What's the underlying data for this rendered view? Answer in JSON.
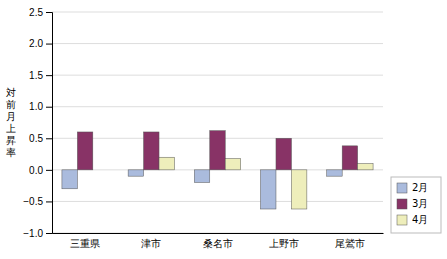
{
  "chart_data": {
    "type": "bar",
    "categories": [
      "三重県",
      "津市",
      "桑名市",
      "上野市",
      "尾鷲市"
    ],
    "series": [
      {
        "name": "2月",
        "color": "#aabbdd",
        "values": [
          -0.3,
          -0.1,
          -0.2,
          -0.62,
          -0.1
        ]
      },
      {
        "name": "3月",
        "color": "#883366",
        "values": [
          0.6,
          0.6,
          0.62,
          0.5,
          0.38
        ]
      },
      {
        "name": "4月",
        "color": "#eeeebb",
        "values": [
          0.0,
          0.2,
          0.18,
          -0.62,
          0.1
        ]
      }
    ],
    "y_label": "対\n前\n月\n上\n昇\n率",
    "ylim": [
      -1.0,
      2.5
    ],
    "yticks": [
      {
        "value": -1.0,
        "label": "−1.0"
      },
      {
        "value": -0.5,
        "label": "−0.5"
      },
      {
        "value": 0.0,
        "label": "0.0"
      },
      0.5,
      {
        "value": 1.0,
        "label": "1.0"
      },
      1.5,
      {
        "value": 2.0,
        "label": "2.0"
      },
      2.5
    ],
    "grid": true,
    "legend": "lower right"
  }
}
